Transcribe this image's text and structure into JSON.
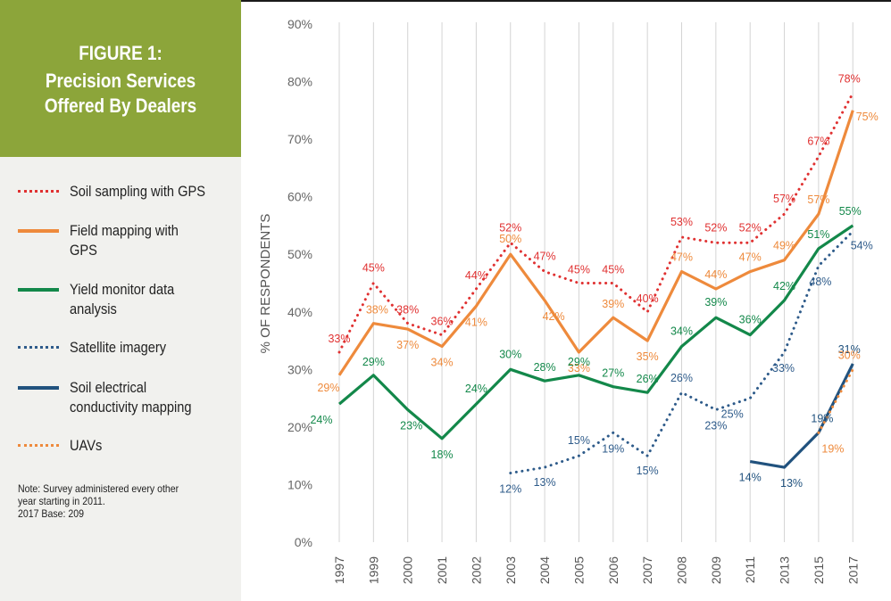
{
  "figure": {
    "label": "FIGURE 1:",
    "title_line1": "Precision Services",
    "title_line2": "Offered By Dealers"
  },
  "note": {
    "line1": "Note: Survey administered every other",
    "line2": "year starting in 2011.",
    "line3": "2017 Base: 209"
  },
  "chart_data": {
    "type": "line",
    "title": "Precision Services Offered By Dealers",
    "ylabel": "% OF RESPONDENTS",
    "xlabel": "",
    "ylim": [
      0,
      90
    ],
    "y_ticks": [
      "0%",
      "10%",
      "20%",
      "30%",
      "40%",
      "50%",
      "60%",
      "70%",
      "80%",
      "90%"
    ],
    "categories": [
      "1997",
      "1999",
      "2000",
      "2001",
      "2002",
      "2003",
      "2004",
      "2005",
      "2006",
      "2007",
      "2008",
      "2009",
      "2011",
      "2013",
      "2015",
      "2017"
    ],
    "grid": "vertical",
    "legend_position": "left",
    "series": [
      {
        "name": "Soil sampling with GPS",
        "color": "#e03131",
        "style": "dotted",
        "values": [
          33,
          45,
          38,
          36,
          44,
          52,
          47,
          45,
          45,
          40,
          53,
          52,
          52,
          57,
          67,
          78
        ],
        "labels": [
          "33%",
          "45%",
          "38%",
          "36%",
          "44%",
          "52%",
          "47%",
          "45%",
          "45%",
          "40%",
          "53%",
          "52%",
          "52%",
          "57%",
          "67%",
          "78%"
        ]
      },
      {
        "name": "Field mapping with GPS",
        "color": "#ee8a3c",
        "style": "solid",
        "values": [
          29,
          38,
          37,
          34,
          41,
          50,
          42,
          33,
          39,
          35,
          47,
          44,
          47,
          49,
          57,
          75
        ],
        "labels": [
          "29%",
          "38%",
          "37%",
          "34%",
          "41%",
          "50%",
          "42%",
          "33%",
          "39%",
          "35%",
          "47%",
          "44%",
          "47%",
          "49%",
          "57%",
          "75%"
        ]
      },
      {
        "name": "Yield monitor data analysis",
        "color": "#13884a",
        "style": "solid",
        "values": [
          24,
          29,
          23,
          18,
          24,
          30,
          28,
          29,
          27,
          26,
          34,
          39,
          36,
          42,
          51,
          55
        ],
        "labels": [
          "24%",
          "29%",
          "23%",
          "18%",
          "24%",
          "30%",
          "28%",
          "29%",
          "27%",
          "26%",
          "34%",
          "39%",
          "36%",
          "42%",
          "51%",
          "55%"
        ]
      },
      {
        "name": "Satellite imagery",
        "color": "#2e5b8a",
        "style": "dotted",
        "values": [
          null,
          null,
          null,
          null,
          null,
          12,
          13,
          15,
          19,
          15,
          26,
          23,
          25,
          33,
          48,
          54
        ],
        "labels": [
          null,
          null,
          null,
          null,
          null,
          "12%",
          "13%",
          "15%",
          "19%",
          "15%",
          "26%",
          "23%",
          "25%",
          "33%",
          "48%",
          "54%"
        ]
      },
      {
        "name": "Soil electrical conductivity mapping",
        "color": "#21527e",
        "style": "solid",
        "values": [
          null,
          null,
          null,
          null,
          null,
          null,
          null,
          null,
          null,
          null,
          null,
          null,
          14,
          13,
          19,
          31
        ],
        "labels": [
          null,
          null,
          null,
          null,
          null,
          null,
          null,
          null,
          null,
          null,
          null,
          null,
          "14%",
          "13%",
          "19%",
          "31%"
        ]
      },
      {
        "name": "UAVs",
        "color": "#ee8a3c",
        "style": "dotted",
        "values": [
          null,
          null,
          null,
          null,
          null,
          null,
          null,
          null,
          null,
          null,
          null,
          null,
          null,
          null,
          19,
          30
        ],
        "labels": [
          null,
          null,
          null,
          null,
          null,
          null,
          null,
          null,
          null,
          null,
          null,
          null,
          null,
          null,
          "19%",
          "30%"
        ]
      }
    ]
  },
  "legend": [
    {
      "label_line1": "Soil sampling with GPS",
      "label_line2": ""
    },
    {
      "label_line1": "Field mapping with",
      "label_line2": "GPS"
    },
    {
      "label_line1": "Yield monitor data",
      "label_line2": "analysis"
    },
    {
      "label_line1": "Satellite imagery",
      "label_line2": ""
    },
    {
      "label_line1": "Soil electrical",
      "label_line2": "conductivity mapping"
    },
    {
      "label_line1": "UAVs",
      "label_line2": ""
    }
  ]
}
